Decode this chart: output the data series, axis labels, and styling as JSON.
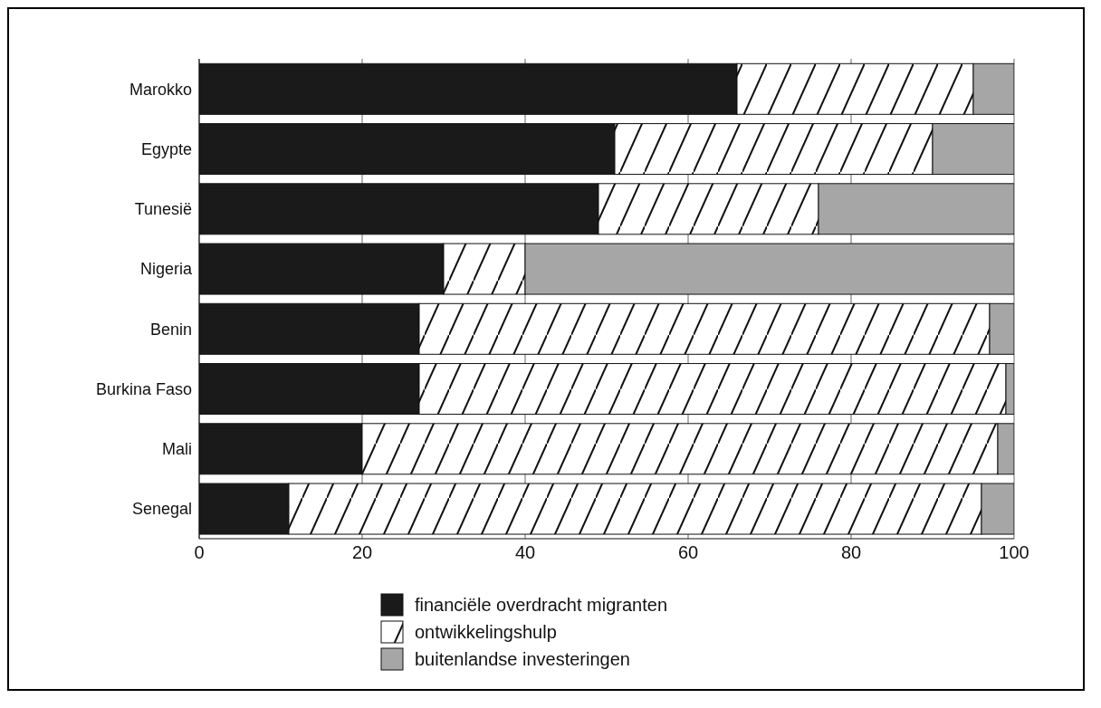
{
  "chart_data": {
    "type": "bar",
    "orientation": "horizontal",
    "stacked": true,
    "categories": [
      "Marokko",
      "Egypte",
      "Tunesië",
      "Nigeria",
      "Benin",
      "Burkina Faso",
      "Mali",
      "Senegal"
    ],
    "series": [
      {
        "name": "financiële overdracht migranten",
        "color": "#1a1a1a",
        "values": [
          66,
          51,
          49,
          30,
          27,
          27,
          20,
          11
        ]
      },
      {
        "name": "ontwikkelingshulp",
        "color": "#ffffff",
        "values": [
          29,
          39,
          27,
          10,
          70,
          72,
          78,
          85
        ]
      },
      {
        "name": "buitenlandse investeringen",
        "color": "#a6a6a6",
        "values": [
          5,
          10,
          24,
          60,
          3,
          1,
          2,
          4
        ]
      }
    ],
    "xlim": [
      0,
      100
    ],
    "xticks": [
      0,
      20,
      40,
      60,
      80,
      100
    ],
    "grid": "x",
    "legend": "bottom"
  }
}
